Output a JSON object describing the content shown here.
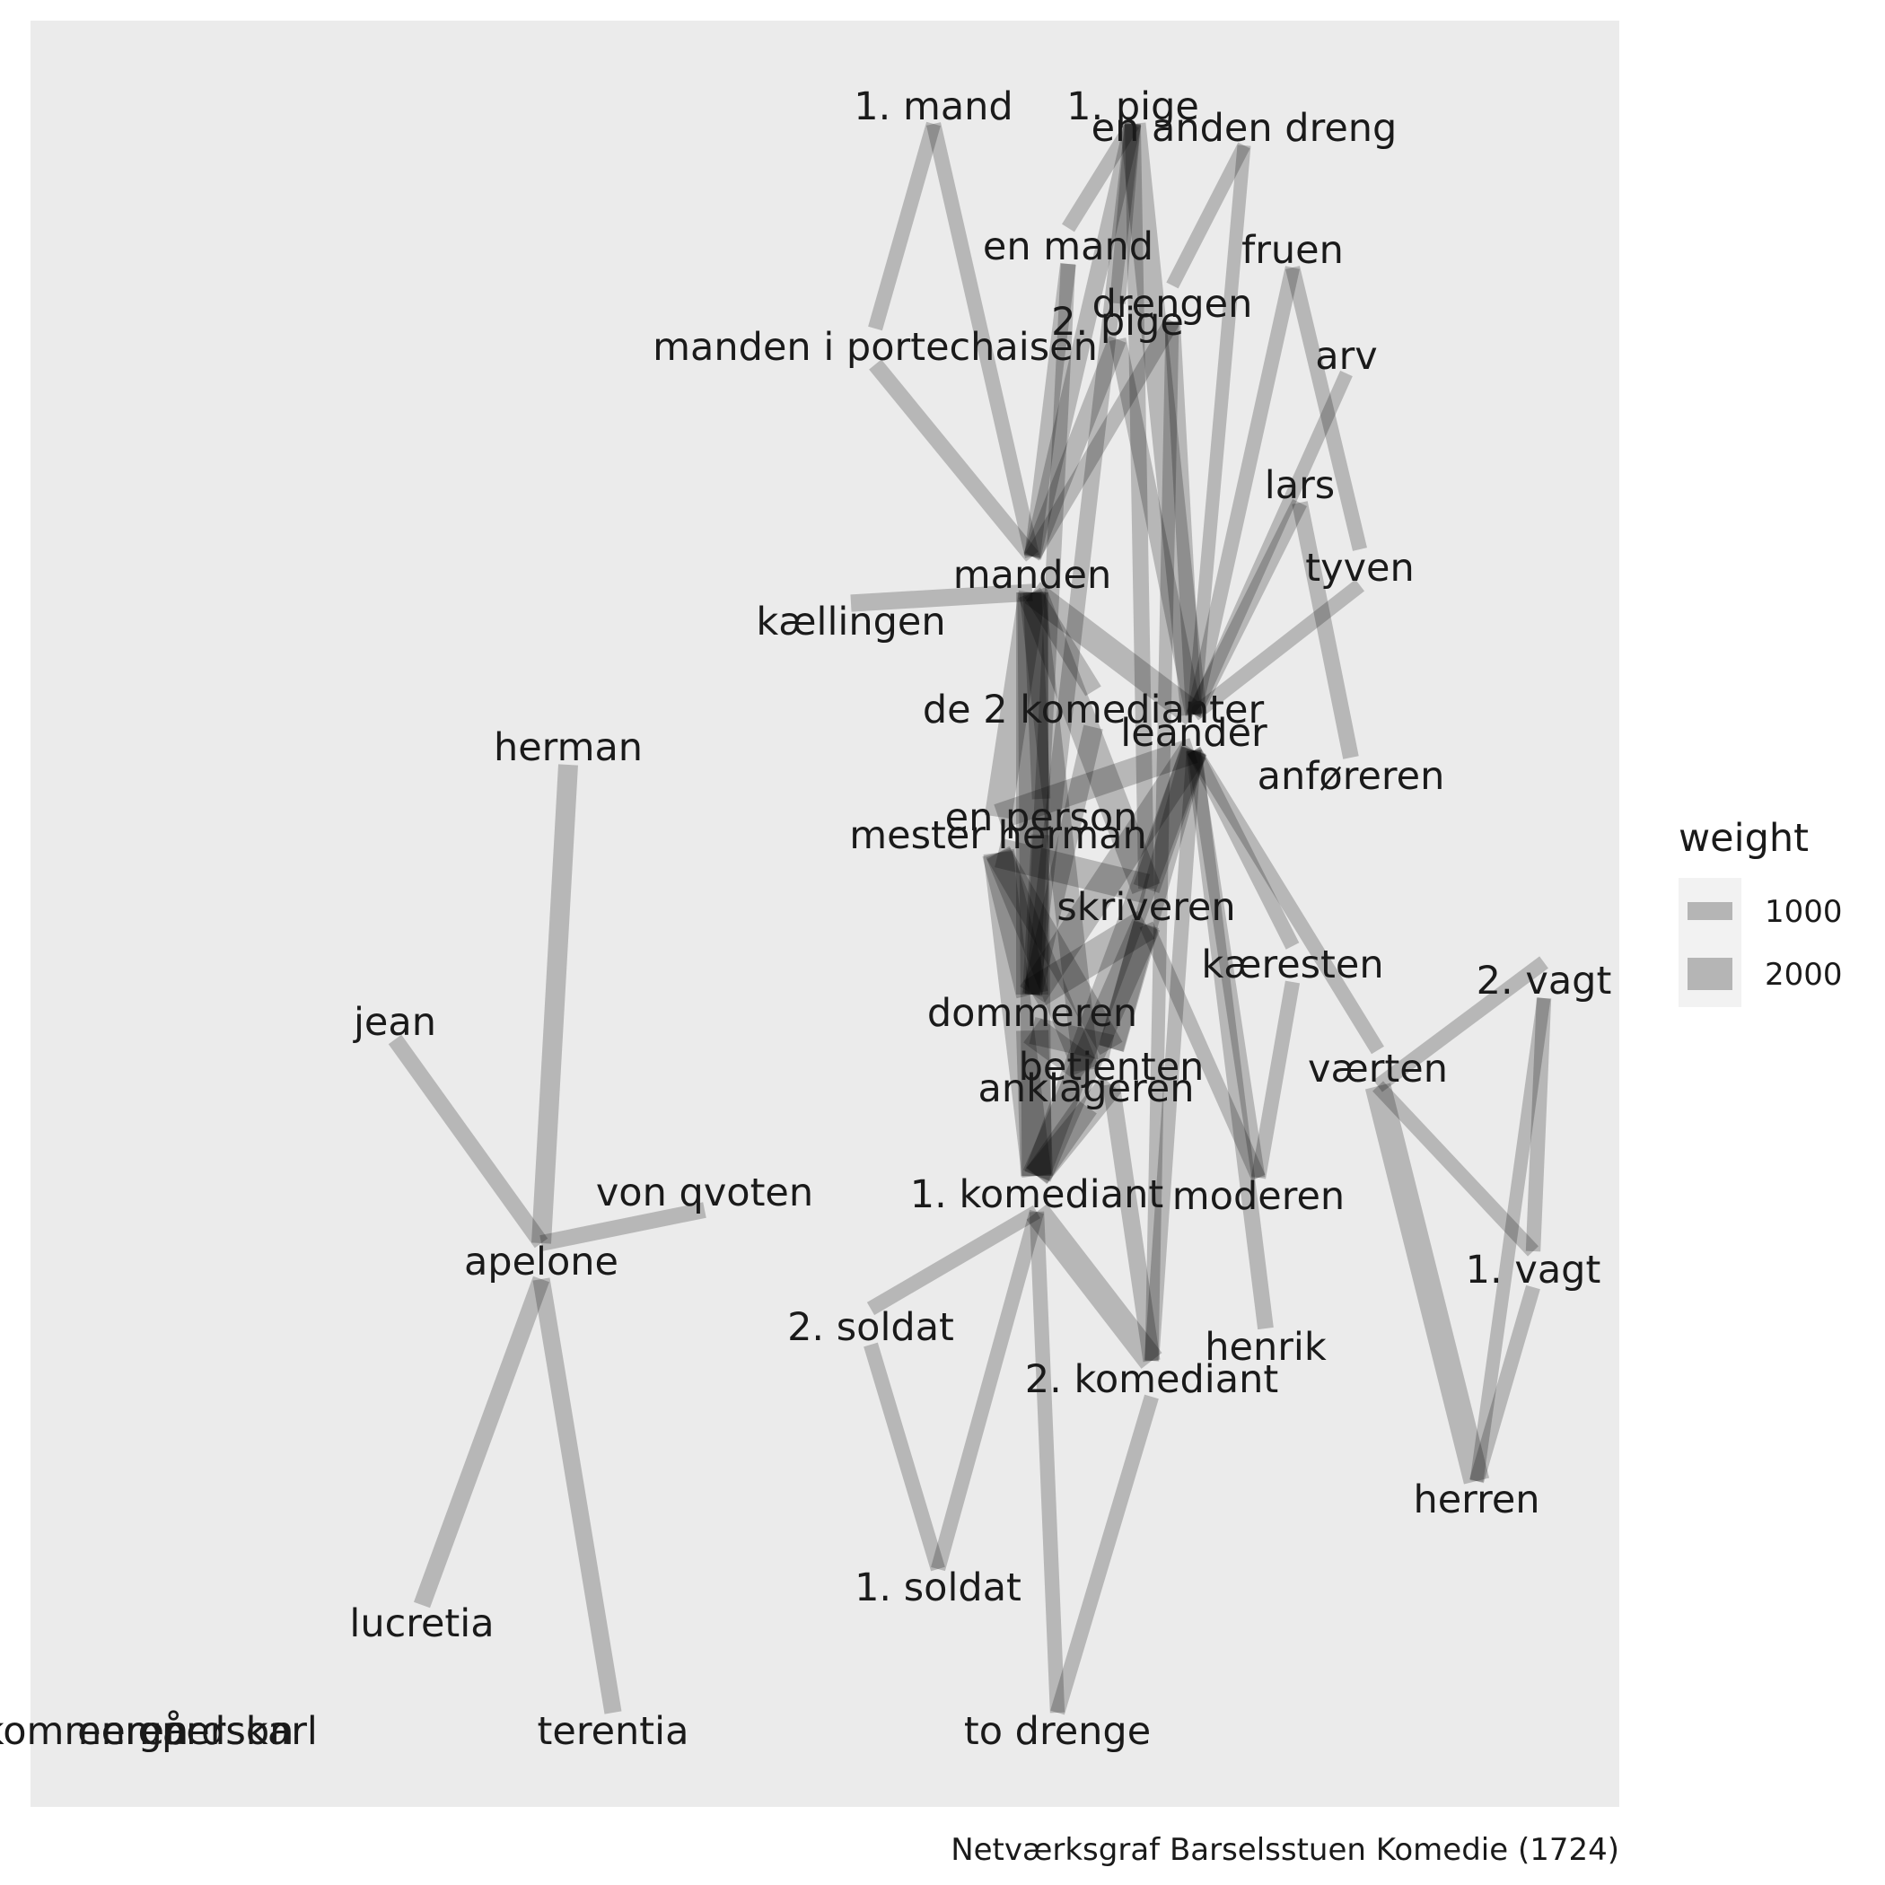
{
  "caption": "Netværksgraf Barselsstuen Komedie (1724)",
  "colors": {
    "panel": "#ebebeb",
    "edge": "#000000",
    "legend_key": "#f2f2f2",
    "text": "#1a1a1a"
  },
  "legend": {
    "title": "weight",
    "items": [
      {
        "label": "1000",
        "value": 1000
      },
      {
        "label": "2000",
        "value": 2000
      }
    ]
  },
  "nodes": [
    {
      "id": "1. mand",
      "label": "1. mand"
    },
    {
      "id": "1. pige",
      "label": "1. pige"
    },
    {
      "id": "en anden dreng",
      "label": "en anden dreng"
    },
    {
      "id": "en mand",
      "label": "en mand"
    },
    {
      "id": "fruen",
      "label": "fruen"
    },
    {
      "id": "drengen",
      "label": "drengen"
    },
    {
      "id": "2. pige",
      "label": "2. pige"
    },
    {
      "id": "manden i portechaisen",
      "label": "manden i portechaisen"
    },
    {
      "id": "arv",
      "label": "arv"
    },
    {
      "id": "lars",
      "label": "lars"
    },
    {
      "id": "tyven",
      "label": "tyven"
    },
    {
      "id": "manden",
      "label": "manden"
    },
    {
      "id": "kællingen",
      "label": "kællingen"
    },
    {
      "id": "de 2 komedianter",
      "label": "de 2 komedianter"
    },
    {
      "id": "leander",
      "label": "leander"
    },
    {
      "id": "anføreren",
      "label": "anføreren"
    },
    {
      "id": "herman",
      "label": "herman"
    },
    {
      "id": "en person",
      "label": "en person"
    },
    {
      "id": "mester herman",
      "label": "mester herman"
    },
    {
      "id": "skriveren",
      "label": "skriveren"
    },
    {
      "id": "kæresten",
      "label": "kæresten"
    },
    {
      "id": "2. vagt",
      "label": "2. vagt"
    },
    {
      "id": "jean",
      "label": "jean"
    },
    {
      "id": "dommeren",
      "label": "dommeren"
    },
    {
      "id": "værten",
      "label": "værten"
    },
    {
      "id": "betjenten",
      "label": "betjenten"
    },
    {
      "id": "anklageren",
      "label": "anklageren"
    },
    {
      "id": "von qvoten",
      "label": "von qvoten"
    },
    {
      "id": "1. komediant",
      "label": "1. komediant"
    },
    {
      "id": "moderen",
      "label": "moderen"
    },
    {
      "id": "apelone",
      "label": "apelone"
    },
    {
      "id": "1. vagt",
      "label": "1. vagt"
    },
    {
      "id": "2. soldat",
      "label": "2. soldat"
    },
    {
      "id": "henrik",
      "label": "henrik"
    },
    {
      "id": "2. komediant",
      "label": "2. komediant"
    },
    {
      "id": "herren",
      "label": "herren"
    },
    {
      "id": "1. soldat",
      "label": "1. soldat"
    },
    {
      "id": "lucretia",
      "label": "lucretia"
    },
    {
      "id": "terentia",
      "label": "terentia"
    },
    {
      "id": "to drenge",
      "label": "to drenge"
    },
    {
      "id": "en gårdskarl",
      "label": "en gårdskarl"
    },
    {
      "id": "en person2",
      "label": "en person"
    },
    {
      "id": "kommeren",
      "label": "kommeren"
    }
  ],
  "edges": [
    {
      "source": "1. mand",
      "target": "manden i portechaisen",
      "weight": 600
    },
    {
      "source": "1. mand",
      "target": "manden",
      "weight": 600
    },
    {
      "source": "manden i portechaisen",
      "target": "manden",
      "weight": 700
    },
    {
      "source": "1. pige",
      "target": "manden",
      "weight": 800
    },
    {
      "source": "1. pige",
      "target": "leander",
      "weight": 1500
    },
    {
      "source": "1. pige",
      "target": "2. pige",
      "weight": 700
    },
    {
      "source": "1. pige",
      "target": "en mand",
      "weight": 600
    },
    {
      "source": "1. pige",
      "target": "skriveren",
      "weight": 700
    },
    {
      "source": "1. pige",
      "target": "dommeren",
      "weight": 700
    },
    {
      "source": "en anden dreng",
      "target": "drengen",
      "weight": 500
    },
    {
      "source": "en anden dreng",
      "target": "leander",
      "weight": 500
    },
    {
      "source": "en mand",
      "target": "manden",
      "weight": 700
    },
    {
      "source": "en mand",
      "target": "dommeren",
      "weight": 600
    },
    {
      "source": "drengen",
      "target": "manden",
      "weight": 700
    },
    {
      "source": "drengen",
      "target": "leander",
      "weight": 700
    },
    {
      "source": "drengen",
      "target": "2. komediant",
      "weight": 500
    },
    {
      "source": "2. pige",
      "target": "manden",
      "weight": 900
    },
    {
      "source": "2. pige",
      "target": "leander",
      "weight": 800
    },
    {
      "source": "fruen",
      "target": "leander",
      "weight": 600
    },
    {
      "source": "fruen",
      "target": "tyven",
      "weight": 600
    },
    {
      "source": "arv",
      "target": "leander",
      "weight": 500
    },
    {
      "source": "lars",
      "target": "leander",
      "weight": 700
    },
    {
      "source": "lars",
      "target": "anføreren",
      "weight": 700
    },
    {
      "source": "tyven",
      "target": "leander",
      "weight": 600
    },
    {
      "source": "manden",
      "target": "leander",
      "weight": 1500
    },
    {
      "source": "manden",
      "target": "dommeren",
      "weight": 2000
    },
    {
      "source": "manden",
      "target": "skriveren",
      "weight": 1800
    },
    {
      "source": "manden",
      "target": "de 2 komedianter",
      "weight": 900
    },
    {
      "source": "manden",
      "target": "mester herman",
      "weight": 1600
    },
    {
      "source": "manden",
      "target": "1. komediant",
      "weight": 1800
    },
    {
      "source": "manden",
      "target": "anklageren",
      "weight": 1500
    },
    {
      "source": "manden",
      "target": "kællingen",
      "weight": 800
    },
    {
      "source": "manden",
      "target": "en person",
      "weight": 900
    },
    {
      "source": "leander",
      "target": "dommeren",
      "weight": 1800
    },
    {
      "source": "leander",
      "target": "skriveren",
      "weight": 1600
    },
    {
      "source": "leander",
      "target": "mester herman",
      "weight": 1500
    },
    {
      "source": "leander",
      "target": "betjenten",
      "weight": 1400
    },
    {
      "source": "leander",
      "target": "1. komediant",
      "weight": 1500
    },
    {
      "source": "leander",
      "target": "kæresten",
      "weight": 600
    },
    {
      "source": "leander",
      "target": "værten",
      "weight": 600
    },
    {
      "source": "leander",
      "target": "henrik",
      "weight": 700
    },
    {
      "source": "leander",
      "target": "2. komediant",
      "weight": 600
    },
    {
      "source": "leander",
      "target": "moderen",
      "weight": 500
    },
    {
      "source": "de 2 komedianter",
      "target": "dommeren",
      "weight": 1000
    },
    {
      "source": "en person",
      "target": "dommeren",
      "weight": 1000
    },
    {
      "source": "mester herman",
      "target": "dommeren",
      "weight": 2000
    },
    {
      "source": "mester herman",
      "target": "skriveren",
      "weight": 1800
    },
    {
      "source": "mester herman",
      "target": "1. komediant",
      "weight": 1800
    },
    {
      "source": "mester herman",
      "target": "betjenten",
      "weight": 1500
    },
    {
      "source": "mester herman",
      "target": "anklageren",
      "weight": 1500
    },
    {
      "source": "skriveren",
      "target": "dommeren",
      "weight": 2000
    },
    {
      "source": "skriveren",
      "target": "1. komediant",
      "weight": 1800
    },
    {
      "source": "skriveren",
      "target": "betjenten",
      "weight": 1500
    },
    {
      "source": "skriveren",
      "target": "moderen",
      "weight": 600
    },
    {
      "source": "dommeren",
      "target": "1. komediant",
      "weight": 2000
    },
    {
      "source": "dommeren",
      "target": "anklageren",
      "weight": 1800
    },
    {
      "source": "dommeren",
      "target": "betjenten",
      "weight": 1600
    },
    {
      "source": "betjenten",
      "target": "1. komediant",
      "weight": 1500
    },
    {
      "source": "betjenten",
      "target": "2. komediant",
      "weight": 800
    },
    {
      "source": "anklageren",
      "target": "1. komediant",
      "weight": 1500
    },
    {
      "source": "kæresten",
      "target": "moderen",
      "weight": 600
    },
    {
      "source": "1. komediant",
      "target": "2. komediant",
      "weight": 1500
    },
    {
      "source": "1. komediant",
      "target": "2. soldat",
      "weight": 600
    },
    {
      "source": "1. komediant",
      "target": "1. soldat",
      "weight": 600
    },
    {
      "source": "1. komediant",
      "target": "to drenge",
      "weight": 600
    },
    {
      "source": "2. soldat",
      "target": "1. soldat",
      "weight": 600
    },
    {
      "source": "2. komediant",
      "target": "to drenge",
      "weight": 600
    },
    {
      "source": "værten",
      "target": "2. vagt",
      "weight": 600
    },
    {
      "source": "værten",
      "target": "1. vagt",
      "weight": 600
    },
    {
      "source": "værten",
      "target": "herren",
      "weight": 1500
    },
    {
      "source": "2. vagt",
      "target": "1. vagt",
      "weight": 600
    },
    {
      "source": "2. vagt",
      "target": "herren",
      "weight": 500
    },
    {
      "source": "1. vagt",
      "target": "herren",
      "weight": 600
    },
    {
      "source": "herman",
      "target": "apelone",
      "weight": 1000
    },
    {
      "source": "jean",
      "target": "apelone",
      "weight": 700
    },
    {
      "source": "von qvoten",
      "target": "apelone",
      "weight": 700
    },
    {
      "source": "apelone",
      "target": "lucretia",
      "weight": 800
    },
    {
      "source": "apelone",
      "target": "terentia",
      "weight": 800
    }
  ]
}
